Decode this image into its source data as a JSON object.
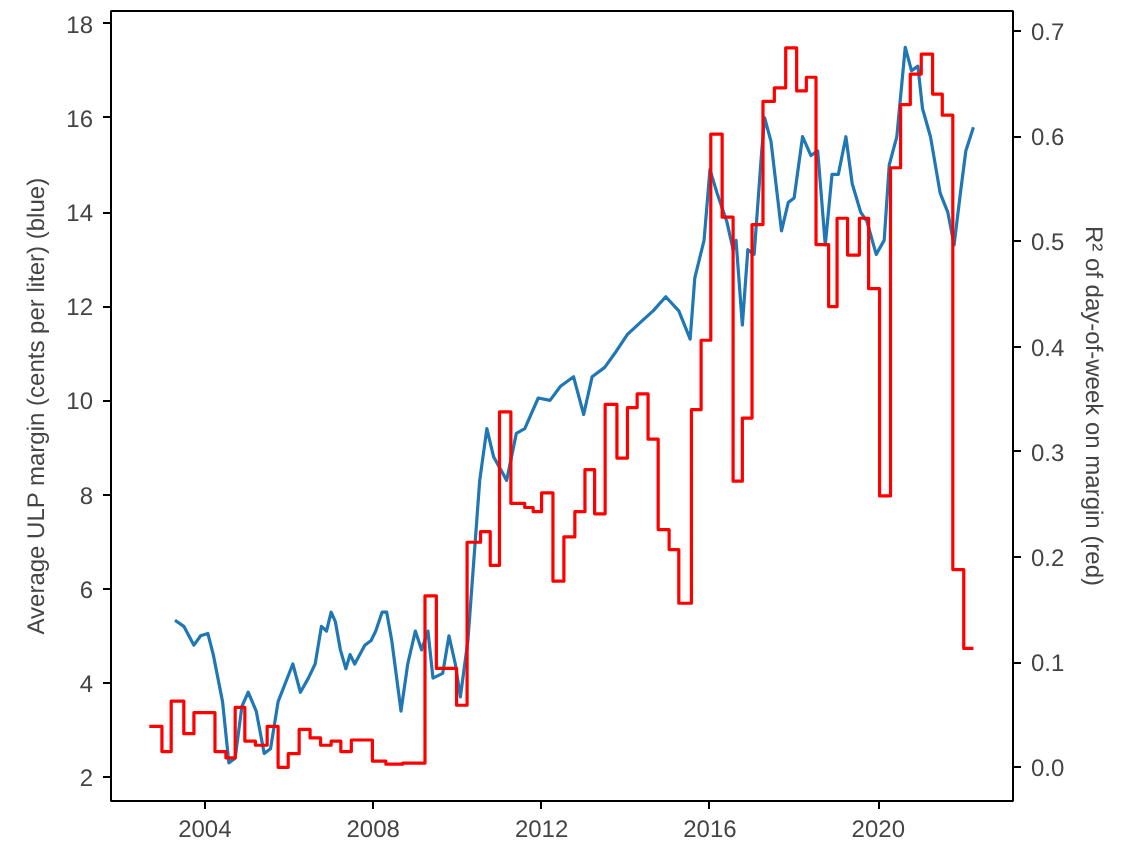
{
  "chart_data": {
    "type": "line",
    "ylabel": "Average ULP margin (cents per liter) (blue)",
    "y2label": "R² of day-of-week on margin (red)",
    "xlim": [
      2001.77,
      2023.2
    ],
    "xticks": [
      2004,
      2008,
      2012,
      2016,
      2020
    ],
    "ylim": [
      1.49,
      18.27
    ],
    "yticks": [
      2,
      4,
      6,
      8,
      10,
      12,
      14,
      16,
      18
    ],
    "y2lim": [
      -0.032,
      0.719
    ],
    "y2ticks": [
      {
        "value": 0,
        "label": "0.0"
      },
      0.1,
      0.2,
      0.3,
      0.4,
      0.5,
      0.6,
      0.7
    ],
    "grid": false,
    "series": [
      {
        "color": "#1f77b4",
        "x": [
          2003.29,
          2003.5,
          2003.74,
          2003.9,
          2004.07,
          2004.2,
          2004.42,
          2004.57,
          2004.72,
          2004.88,
          2005.03,
          2005.22,
          2005.41,
          2005.56,
          2005.74,
          2006.09,
          2006.27,
          2006.46,
          2006.62,
          2006.77,
          2006.89,
          2007.0,
          2007.1,
          2007.22,
          2007.35,
          2007.45,
          2007.56,
          2007.8,
          2007.95,
          2008.06,
          2008.21,
          2008.32,
          2008.44,
          2008.66,
          2008.82,
          2009.0,
          2009.15,
          2009.3,
          2009.42,
          2009.65,
          2009.8,
          2009.95,
          2010.07,
          2010.25,
          2010.53,
          2010.7,
          2010.86,
          2011.17,
          2011.4,
          2011.6,
          2011.92,
          2012.2,
          2012.45,
          2012.76,
          2013.0,
          2013.2,
          2013.5,
          2013.74,
          2014.04,
          2014.4,
          2014.65,
          2014.95,
          2015.26,
          2015.53,
          2015.64,
          2015.86,
          2016.0,
          2016.17,
          2016.4,
          2016.55,
          2016.62,
          2016.77,
          2016.9,
          2017.05,
          2017.23,
          2017.3,
          2017.45,
          2017.7,
          2017.86,
          2018.0,
          2018.2,
          2018.4,
          2018.56,
          2018.74,
          2018.9,
          2019.05,
          2019.23,
          2019.38,
          2019.58,
          2019.73,
          2019.95,
          2020.14,
          2020.26,
          2020.44,
          2020.64,
          2020.79,
          2020.94,
          2021.05,
          2021.24,
          2021.47,
          2021.65,
          2021.8,
          2021.95,
          2022.08,
          2022.26
        ],
        "values": [
          5.33,
          5.2,
          4.8,
          5.0,
          5.05,
          4.6,
          3.6,
          2.3,
          2.4,
          3.5,
          3.8,
          3.4,
          2.5,
          2.6,
          3.6,
          4.4,
          3.8,
          4.1,
          4.4,
          5.2,
          5.1,
          5.5,
          5.3,
          4.7,
          4.3,
          4.6,
          4.4,
          4.8,
          4.9,
          5.1,
          5.5,
          5.5,
          4.9,
          3.4,
          4.4,
          5.1,
          4.7,
          5.1,
          4.1,
          4.2,
          5.0,
          4.4,
          3.7,
          4.9,
          8.3,
          9.4,
          8.8,
          8.3,
          9.3,
          9.4,
          10.05,
          10.0,
          10.3,
          10.5,
          9.7,
          10.5,
          10.7,
          11.0,
          11.4,
          11.7,
          11.9,
          12.2,
          11.9,
          11.3,
          12.6,
          13.4,
          14.9,
          14.4,
          13.8,
          13.2,
          13.4,
          11.6,
          13.2,
          13.1,
          15.3,
          16.0,
          15.5,
          13.6,
          14.2,
          14.3,
          15.6,
          15.2,
          15.3,
          13.3,
          14.8,
          14.8,
          15.6,
          14.6,
          14.0,
          13.8,
          13.1,
          13.4,
          15.0,
          15.6,
          17.5,
          17.0,
          17.1,
          16.2,
          15.6,
          14.4,
          14.0,
          13.3,
          14.4,
          15.3,
          15.8
        ]
      },
      {
        "type": "step",
        "axis": "y2",
        "color": "#ff0000",
        "x": [
          2002.68,
          2002.98,
          2003.2,
          2003.5,
          2003.74,
          2004.24,
          2004.5,
          2004.72,
          2004.95,
          2005.2,
          2005.48,
          2005.74,
          2005.98,
          2006.24,
          2006.5,
          2006.75,
          2007.0,
          2007.23,
          2007.48,
          2007.98,
          2008.3,
          2008.7,
          2009.23,
          2009.5,
          2009.98,
          2010.23,
          2010.55,
          2010.78,
          2011.0,
          2011.27,
          2011.6,
          2011.8,
          2012.0,
          2012.27,
          2012.53,
          2012.79,
          2013.03,
          2013.26,
          2013.51,
          2013.79,
          2014.04,
          2014.27,
          2014.53,
          2014.77,
          2015.03,
          2015.26,
          2015.56,
          2015.79,
          2016.02,
          2016.29,
          2016.55,
          2016.77,
          2017.0,
          2017.26,
          2017.53,
          2017.8,
          2018.06,
          2018.29,
          2018.52,
          2018.82,
          2019.02,
          2019.27,
          2019.55,
          2019.77,
          2020.03,
          2020.29,
          2020.53,
          2020.76,
          2021.02,
          2021.29,
          2021.52,
          2021.77,
          2022.03,
          2022.26
        ],
        "values": [
          0.039,
          0.015,
          0.063,
          0.032,
          0.052,
          0.015,
          0.009,
          0.057,
          0.025,
          0.021,
          0.039,
          0.0,
          0.013,
          0.036,
          0.028,
          0.021,
          0.025,
          0.015,
          0.026,
          0.006,
          0.003,
          0.004,
          0.163,
          0.094,
          0.059,
          0.214,
          0.224,
          0.192,
          0.338,
          0.251,
          0.247,
          0.243,
          0.261,
          0.177,
          0.219,
          0.243,
          0.283,
          0.241,
          0.345,
          0.294,
          0.342,
          0.355,
          0.312,
          0.226,
          0.207,
          0.156,
          0.34,
          0.406,
          0.602,
          0.523,
          0.272,
          0.332,
          0.516,
          0.633,
          0.646,
          0.684,
          0.643,
          0.656,
          0.497,
          0.438,
          0.522,
          0.487,
          0.522,
          0.455,
          0.258,
          0.57,
          0.63,
          0.659,
          0.678,
          0.64,
          0.62,
          0.188,
          0.113,
          0.113
        ]
      }
    ]
  }
}
